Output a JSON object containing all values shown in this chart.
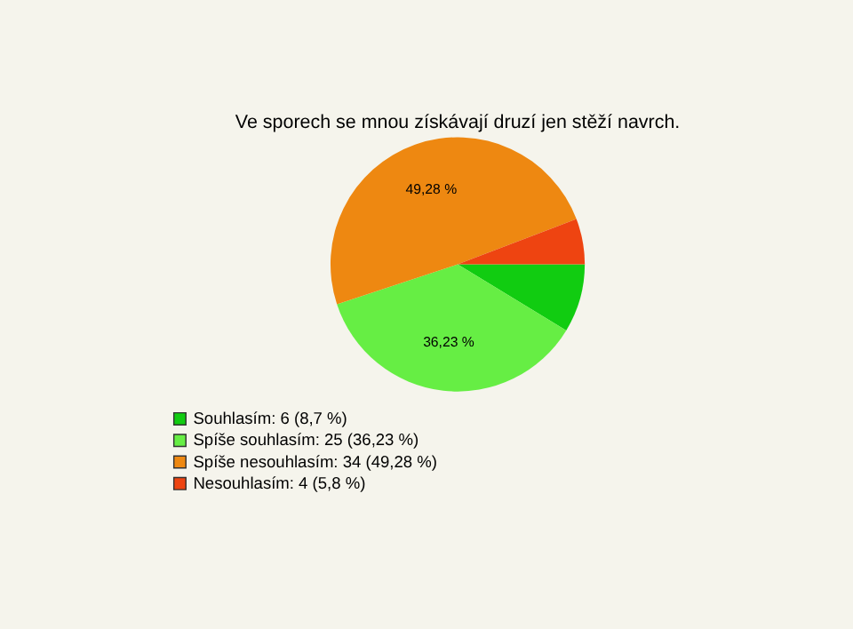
{
  "chart_data": {
    "type": "pie",
    "title": "Ve sporech se mnou získávají druzí jen stěží navrch.",
    "categories": [
      "Souhlasím: 6 (8,7 %)",
      "Spíše souhlasím: 25 (36,23 %)",
      "Spíše nesouhlasím: 34 (49,28 %)",
      "Nesouhlasím: 4 (5,8 %)"
    ],
    "values": [
      8.7,
      36.23,
      49.28,
      5.8
    ],
    "colors": [
      "#11cc11",
      "#66ee44",
      "#ee8811",
      "#ee4411"
    ],
    "value_labels": [
      null,
      "36,23 %",
      "49,28 %",
      null
    ],
    "legend": "bottom left"
  }
}
